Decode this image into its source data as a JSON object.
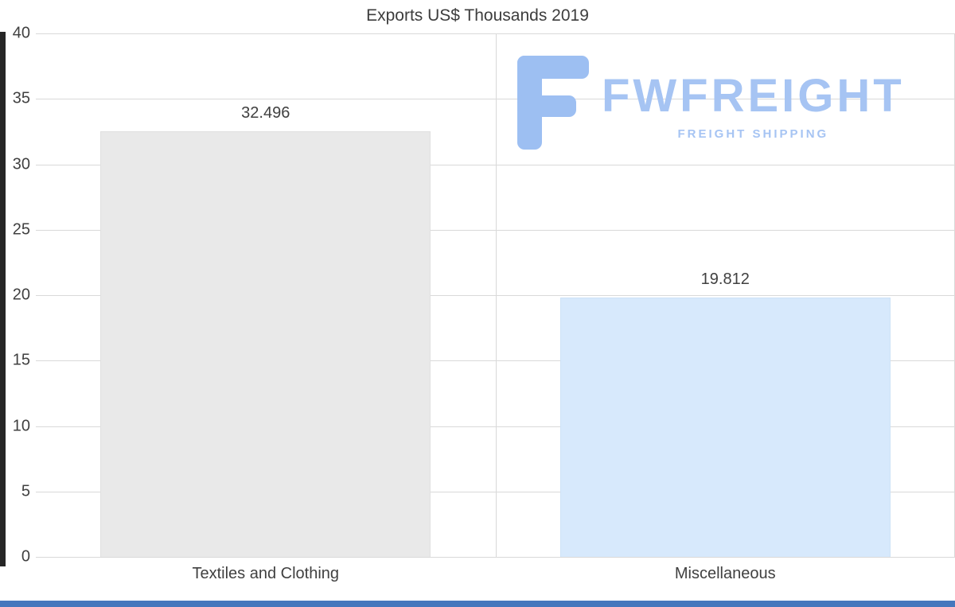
{
  "chart_data": {
    "type": "bar",
    "title": "Exports US$ Thousands 2019",
    "categories": [
      "Textiles and Clothing",
      "Miscellaneous"
    ],
    "values": [
      32.496,
      19.812
    ],
    "value_labels": [
      "32.496",
      "19.812"
    ],
    "ylim": [
      0,
      40
    ],
    "yticks": [
      0,
      5,
      10,
      15,
      20,
      25,
      30,
      35,
      40
    ],
    "grid": true,
    "legend_position": "none",
    "bar_colors": [
      "#e9e9e9",
      "#d7e9fc"
    ],
    "bar_border_colors": [
      "#e0e0e0",
      "#cde2f7"
    ]
  },
  "watermark": {
    "brand": "FWFREIGHT",
    "tagline": "FREIGHT SHIPPING",
    "color": "#a6c4f3",
    "icon": "fwfreight-f-icon",
    "icon_color": "#9dbff2"
  },
  "decorations": {
    "left_scrollbar_color": "#262626",
    "bottom_scrollbar_color": "#4577bd",
    "gridline_color": "#d9d9d9",
    "text_color": "#404040"
  }
}
